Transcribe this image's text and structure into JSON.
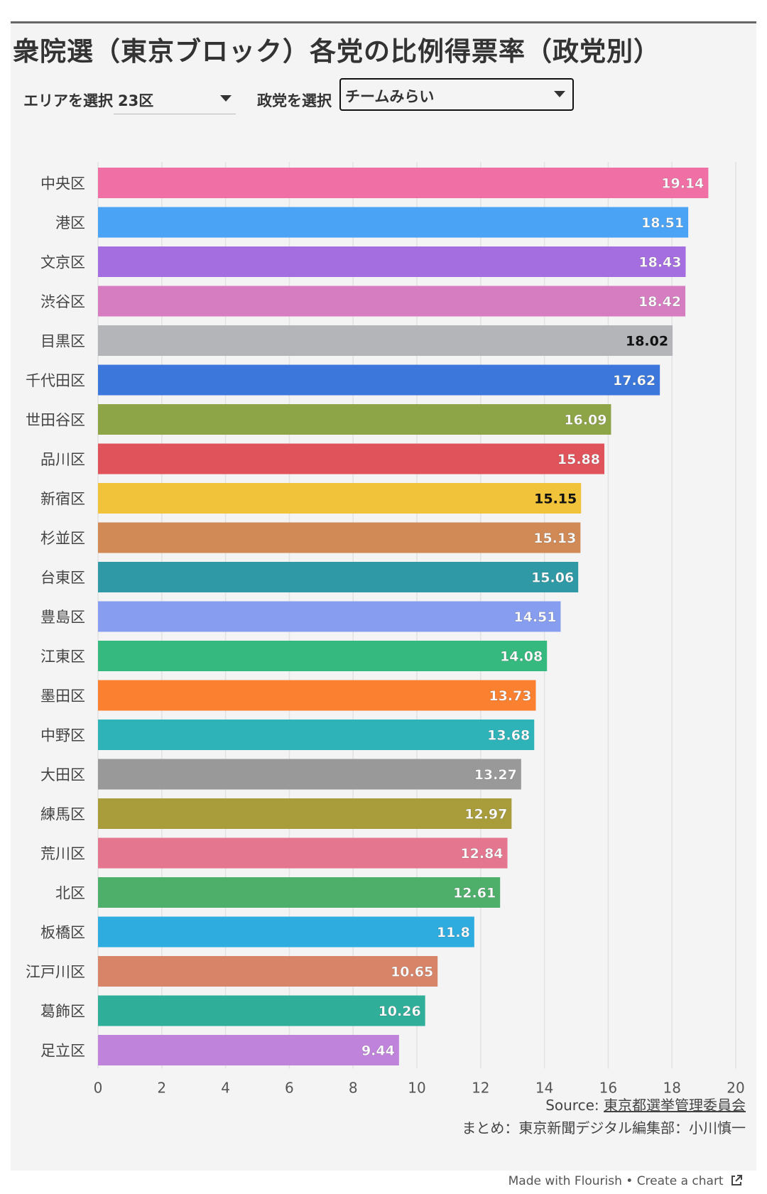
{
  "header": {
    "title": "衆院選（東京ブロック）各党の比例得票率（政党別）"
  },
  "controls": {
    "area_label": "エリアを選択",
    "area_value": "23区",
    "party_label": "政党を選択",
    "party_value": "チームみらい"
  },
  "chart_data": {
    "type": "bar",
    "orientation": "horizontal",
    "categories": [
      "中央区",
      "港区",
      "文京区",
      "渋谷区",
      "目黒区",
      "千代田区",
      "世田谷区",
      "品川区",
      "新宿区",
      "杉並区",
      "台東区",
      "豊島区",
      "江東区",
      "墨田区",
      "中野区",
      "大田区",
      "練馬区",
      "荒川区",
      "北区",
      "板橋区",
      "江戸川区",
      "葛飾区",
      "足立区"
    ],
    "values": [
      19.14,
      18.51,
      18.43,
      18.42,
      18.02,
      17.62,
      16.09,
      15.88,
      15.15,
      15.13,
      15.06,
      14.51,
      14.08,
      13.73,
      13.68,
      13.27,
      12.97,
      12.84,
      12.61,
      11.8,
      10.65,
      10.26,
      9.44
    ],
    "value_labels": [
      "19.14",
      "18.51",
      "18.43",
      "18.42",
      "18.02",
      "17.62",
      "16.09",
      "15.88",
      "15.15",
      "15.13",
      "15.06",
      "14.51",
      "14.08",
      "13.73",
      "13.68",
      "13.27",
      "12.97",
      "12.84",
      "12.61",
      "11.8",
      "10.65",
      "10.26",
      "9.44"
    ],
    "colors": [
      "#f06fa4",
      "#4aa3f5",
      "#a56ee0",
      "#d67dc2",
      "#b3b5b8",
      "#3c78db",
      "#8ea547",
      "#e0535b",
      "#f1c33a",
      "#d18a56",
      "#2f9aa5",
      "#879df0",
      "#35b97f",
      "#fb8030",
      "#2db3b8",
      "#999999",
      "#a89d3a",
      "#e4768f",
      "#4daf6a",
      "#2eabdf",
      "#d88469",
      "#2fae99",
      "#c083dc"
    ],
    "dark_label_indices": [
      4,
      8
    ],
    "xlim": [
      0,
      20
    ],
    "xticks": [
      "0",
      "2",
      "4",
      "6",
      "8",
      "10",
      "12",
      "14",
      "16",
      "18",
      "20"
    ],
    "grid": true,
    "legend": "none"
  },
  "source": {
    "prefix": "Source: ",
    "link": "東京都選挙管理委員会",
    "credit": "まとめ：東京新聞デジタル編集部：小川慎一"
  },
  "footer": {
    "made_with": "Made with Flourish",
    "separator": " • ",
    "create": "Create a chart",
    "icon": "external-link-icon"
  }
}
